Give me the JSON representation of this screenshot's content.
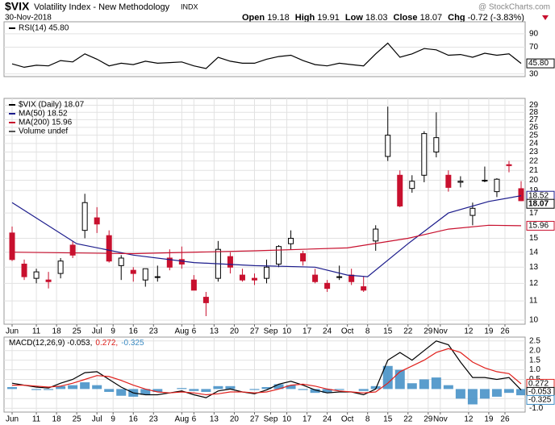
{
  "header": {
    "symbol": "$VIX",
    "name": "Volatility Index - New Methodology",
    "exchange": "INDX",
    "date": "30-Nov-2018",
    "source": "@ StockCharts.com",
    "quote": [
      {
        "label": "Open",
        "value": 19.18
      },
      {
        "label": "High",
        "value": 19.91
      },
      {
        "label": "Low",
        "value": 18.03
      },
      {
        "label": "Close",
        "value": 18.07
      },
      {
        "label": "Chg",
        "value": -0.72
      }
    ],
    "change_pct": "(-3.83%)"
  },
  "chart_data": [
    {
      "type": "line",
      "xlim": [
        -2,
        127
      ],
      "ylim": [
        26,
        108
      ],
      "yticks": [
        30,
        70,
        90
      ],
      "grid": true,
      "x": [
        0,
        3,
        6,
        9,
        12,
        15,
        18,
        21,
        24,
        27,
        30,
        33,
        36,
        39,
        42,
        45,
        48,
        51,
        54,
        57,
        60,
        63,
        66,
        69,
        72,
        75,
        78,
        81,
        84,
        87,
        90,
        93,
        96,
        99,
        102,
        105,
        108,
        111,
        114,
        117,
        120,
        123,
        126
      ],
      "series": [
        {
          "name": "RSI(14) 45.80",
          "color": "#000000",
          "values": [
            45,
            40,
            43,
            42,
            50,
            48,
            60,
            52,
            42,
            46,
            44,
            49,
            46,
            47,
            48,
            42,
            38,
            55,
            49,
            46,
            46,
            52,
            56,
            58,
            50,
            44,
            42,
            46,
            44,
            42,
            60,
            76,
            55,
            60,
            68,
            66,
            58,
            59,
            55,
            61,
            58,
            60,
            45.8
          ],
          "value_labels": [
            null,
            null,
            null,
            null,
            null,
            null,
            null,
            null,
            null,
            null,
            null,
            null,
            null,
            null,
            null,
            null,
            null,
            null,
            null,
            null,
            null,
            null,
            null,
            null,
            null,
            null,
            null,
            null,
            null,
            null,
            null,
            null,
            null,
            null,
            null,
            null,
            null,
            null,
            null,
            null,
            null,
            null,
            "45.80"
          ]
        }
      ]
    },
    {
      "type": "candlestick",
      "name": "$VIX (Daily) 18.07",
      "log_y": true,
      "grid": true,
      "up_color": "#000000",
      "down_color": "#c8102e",
      "volume_label": "Volume undef",
      "xlim": [
        -2,
        127
      ],
      "ylim": [
        9.8,
        30
      ],
      "yticks": [
        10,
        11,
        12,
        13,
        14,
        15,
        17,
        19,
        20,
        21,
        22,
        23,
        24,
        25,
        26,
        27,
        28,
        29
      ],
      "xticks": [
        {
          "value": 0,
          "label": "Jun"
        },
        {
          "value": 6,
          "label": "11"
        },
        {
          "value": 11,
          "label": "18"
        },
        {
          "value": 16,
          "label": "25"
        },
        {
          "value": 21,
          "label": "Jul"
        },
        {
          "value": 25,
          "label": "9"
        },
        {
          "value": 30,
          "label": "16"
        },
        {
          "value": 35,
          "label": "23"
        },
        {
          "value": 42,
          "label": "Aug"
        },
        {
          "value": 45,
          "label": "6"
        },
        {
          "value": 50,
          "label": "13"
        },
        {
          "value": 55,
          "label": "20"
        },
        {
          "value": 60,
          "label": "27"
        },
        {
          "value": 64,
          "label": "Sep"
        },
        {
          "value": 68,
          "label": "10"
        },
        {
          "value": 73,
          "label": "17"
        },
        {
          "value": 78,
          "label": "24"
        },
        {
          "value": 83,
          "label": "Oct"
        },
        {
          "value": 88,
          "label": "8"
        },
        {
          "value": 93,
          "label": "15"
        },
        {
          "value": 98,
          "label": "22"
        },
        {
          "value": 103,
          "label": "29"
        },
        {
          "value": 106,
          "label": "Nov"
        },
        {
          "value": 113,
          "label": "12"
        },
        {
          "value": 118,
          "label": "19"
        },
        {
          "value": 122,
          "label": "26"
        }
      ],
      "x": [
        0,
        3,
        6,
        9,
        12,
        15,
        18,
        21,
        24,
        27,
        30,
        33,
        36,
        39,
        42,
        45,
        48,
        51,
        54,
        57,
        60,
        63,
        66,
        69,
        72,
        75,
        78,
        81,
        84,
        87,
        90,
        93,
        96,
        99,
        102,
        105,
        108,
        111,
        114,
        117,
        120,
        123,
        126
      ],
      "open": [
        15.4,
        13.2,
        12.3,
        12.2,
        12.6,
        14.5,
        15.6,
        16.6,
        15.2,
        13.1,
        12.8,
        12.2,
        12.4,
        13.6,
        13.5,
        12.2,
        11.2,
        12.3,
        13.7,
        12.5,
        12.3,
        12.3,
        13.2,
        14.6,
        13.9,
        12.5,
        12.0,
        12.4,
        12.5,
        11.8,
        14.8,
        22.5,
        20.5,
        19.2,
        20.5,
        23.0,
        20.5,
        19.8,
        16.8,
        20.0,
        18.9,
        21.6,
        19.18
      ],
      "high": [
        15.9,
        13.5,
        12.9,
        12.7,
        13.6,
        14.8,
        18.7,
        17.5,
        15.6,
        13.8,
        13.0,
        12.9,
        13.1,
        14.2,
        14.4,
        12.5,
        11.5,
        14.8,
        14.0,
        12.9,
        12.6,
        13.5,
        14.5,
        15.6,
        14.1,
        12.9,
        12.2,
        13.1,
        12.9,
        12.4,
        16.0,
        28.8,
        21.0,
        20.5,
        25.5,
        28.0,
        21.0,
        20.4,
        17.9,
        21.4,
        20.2,
        22.0,
        19.91
      ],
      "low": [
        13.4,
        12.2,
        12.0,
        11.7,
        12.3,
        13.6,
        15.0,
        15.4,
        13.3,
        12.2,
        12.1,
        11.8,
        12.1,
        12.8,
        12.9,
        11.6,
        10.2,
        12.1,
        12.6,
        12.1,
        11.9,
        12.0,
        13.0,
        14.2,
        13.1,
        12.0,
        11.5,
        12.2,
        11.9,
        11.5,
        14.1,
        22.0,
        17.5,
        18.8,
        19.8,
        22.4,
        18.9,
        19.3,
        16.0,
        19.8,
        18.4,
        20.8,
        18.03
      ],
      "close": [
        13.5,
        12.4,
        12.7,
        12.1,
        13.4,
        13.8,
        17.9,
        16.1,
        13.4,
        13.6,
        12.6,
        12.9,
        12.4,
        13.0,
        13.2,
        11.6,
        10.9,
        14.2,
        13.0,
        12.2,
        12.2,
        13.0,
        14.4,
        15.0,
        13.4,
        12.1,
        11.7,
        12.4,
        12.1,
        11.6,
        15.7,
        25.0,
        17.6,
        19.9,
        25.2,
        24.7,
        19.3,
        19.9,
        17.4,
        20.0,
        20.1,
        21.5,
        18.07
      ],
      "series": [
        {
          "name": "MA(50) 18.52",
          "color": "#1c1c8c",
          "x": [
            0,
            16,
            30,
            45,
            60,
            75,
            83,
            88,
            98,
            108,
            118,
            126
          ],
          "values": [
            17.9,
            14.6,
            13.8,
            13.3,
            13.1,
            13.0,
            12.5,
            12.4,
            14.6,
            17.0,
            18.0,
            18.52
          ]
        },
        {
          "name": "MA(200) 15.96",
          "color": "#c8102e",
          "x": [
            0,
            30,
            60,
            83,
            98,
            108,
            118,
            126
          ],
          "values": [
            14.0,
            13.9,
            14.1,
            14.3,
            15.0,
            15.7,
            16.0,
            15.96
          ]
        }
      ]
    },
    {
      "type": "macd",
      "grid": true,
      "xlim": [
        -2,
        127
      ],
      "ylim": [
        -1.2,
        2.7
      ],
      "yticks": [
        {
          "value": -1,
          "label": "-1.0"
        },
        -0.5,
        0.5,
        {
          "value": 1,
          "label": "1.0"
        },
        1.5,
        {
          "value": 2,
          "label": "2.0"
        },
        2.5
      ],
      "xticks": [
        {
          "value": 0,
          "label": "Jun"
        },
        {
          "value": 6,
          "label": "11"
        },
        {
          "value": 11,
          "label": "18"
        },
        {
          "value": 16,
          "label": "25"
        },
        {
          "value": 21,
          "label": "Jul"
        },
        {
          "value": 25,
          "label": "9"
        },
        {
          "value": 30,
          "label": "16"
        },
        {
          "value": 35,
          "label": "23"
        },
        {
          "value": 42,
          "label": "Aug"
        },
        {
          "value": 45,
          "label": "6"
        },
        {
          "value": 50,
          "label": "13"
        },
        {
          "value": 55,
          "label": "20"
        },
        {
          "value": 60,
          "label": "27"
        },
        {
          "value": 64,
          "label": "Sep"
        },
        {
          "value": 68,
          "label": "10"
        },
        {
          "value": 73,
          "label": "17"
        },
        {
          "value": 78,
          "label": "24"
        },
        {
          "value": 83,
          "label": "Oct"
        },
        {
          "value": 88,
          "label": "8"
        },
        {
          "value": 93,
          "label": "15"
        },
        {
          "value": 98,
          "label": "22"
        },
        {
          "value": 103,
          "label": "29"
        },
        {
          "value": 106,
          "label": "Nov"
        },
        {
          "value": 113,
          "label": "12"
        },
        {
          "value": 118,
          "label": "19"
        },
        {
          "value": 122,
          "label": "26"
        }
      ],
      "x": [
        0,
        3,
        6,
        9,
        12,
        15,
        18,
        21,
        24,
        27,
        30,
        33,
        36,
        39,
        42,
        45,
        48,
        51,
        54,
        57,
        60,
        63,
        66,
        69,
        72,
        75,
        78,
        81,
        84,
        87,
        90,
        93,
        96,
        99,
        102,
        105,
        108,
        111,
        114,
        117,
        120,
        123,
        126
      ],
      "series": [
        {
          "name": "MACD(12,26,9) -0.053,",
          "color": "#000000",
          "kind": "line",
          "values": [
            0.3,
            0.2,
            0.1,
            0.05,
            0.3,
            0.5,
            0.85,
            0.9,
            0.5,
            0.1,
            -0.2,
            -0.3,
            -0.3,
            -0.2,
            -0.1,
            -0.3,
            -0.45,
            -0.1,
            0.0,
            -0.15,
            -0.25,
            -0.05,
            0.25,
            0.4,
            0.2,
            -0.05,
            -0.2,
            -0.15,
            -0.15,
            -0.3,
            0.0,
            1.5,
            1.9,
            1.5,
            2.0,
            2.5,
            2.3,
            1.4,
            0.6,
            0.6,
            0.5,
            0.6,
            -0.053
          ]
        },
        {
          "name": "0.272,",
          "color": "#e0201c",
          "kind": "line",
          "values": [
            0.2,
            0.2,
            0.15,
            0.1,
            0.15,
            0.3,
            0.5,
            0.7,
            0.65,
            0.45,
            0.2,
            0.0,
            -0.15,
            -0.2,
            -0.15,
            -0.2,
            -0.3,
            -0.25,
            -0.15,
            -0.15,
            -0.2,
            -0.15,
            0.0,
            0.2,
            0.25,
            0.15,
            0.0,
            -0.1,
            -0.15,
            -0.2,
            -0.15,
            0.3,
            0.9,
            1.2,
            1.5,
            1.9,
            2.1,
            1.9,
            1.4,
            1.1,
            0.9,
            0.8,
            0.272
          ]
        },
        {
          "name": "-0.325",
          "color": "#3d8cc4",
          "kind": "bar",
          "values": [
            0.1,
            0,
            -0.05,
            -0.05,
            0.15,
            0.2,
            0.35,
            0.2,
            -0.15,
            -0.35,
            -0.4,
            -0.3,
            -0.15,
            0,
            0.05,
            -0.1,
            -0.15,
            0.15,
            0.15,
            0,
            -0.05,
            0.1,
            0.25,
            0.2,
            -0.05,
            -0.2,
            -0.2,
            -0.05,
            0,
            -0.1,
            0.15,
            1.2,
            1.0,
            0.3,
            0.5,
            0.6,
            0.2,
            -0.5,
            -0.8,
            -0.5,
            -0.4,
            -0.2,
            -0.325
          ]
        }
      ]
    }
  ]
}
